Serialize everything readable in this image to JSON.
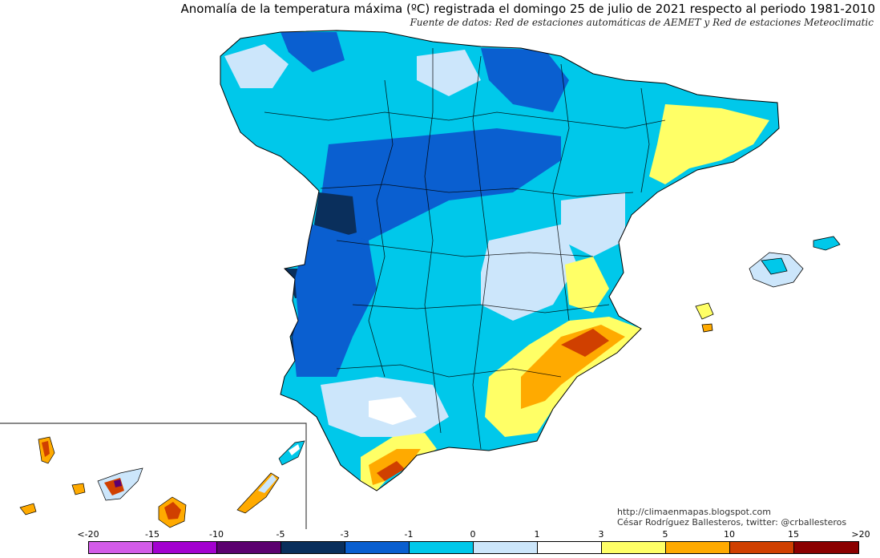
{
  "header": {
    "title": "Anomalía de la temperatura máxima (ºC) registrada el domingo 25 de julio de 2021 respecto al periodo 1981-2010",
    "subtitle": "Fuente de datos: Red de estaciones automáticas de AEMET y Red de estaciones Meteoclimatic"
  },
  "credits": {
    "url": "http://climaenmapas.blogspot.com",
    "author": "César Rodríguez Ballesteros, twitter: @crballesteros"
  },
  "legend": {
    "ticks": [
      "<-20",
      "-15",
      "-10",
      "-5",
      "-3",
      "-1",
      "0",
      "1",
      "3",
      "5",
      "10",
      "15",
      ">20"
    ],
    "colors": [
      "#d35be8",
      "#a300d0",
      "#5c0070",
      "#0a2f5c",
      "#0a5fd0",
      "#00c8ea",
      "#cce6fb",
      "#ffffff",
      "#ffff66",
      "#ffaa00",
      "#d04000",
      "#8b0000",
      "#5c3000"
    ]
  },
  "colors": {
    "deep_blue": "#0a2f5c",
    "blue": "#0a5fd0",
    "cyan": "#00c8ea",
    "light_blue": "#cce6fb",
    "yellow": "#ffff66",
    "orange": "#ffaa00",
    "red": "#d04000"
  },
  "icons": [
    "peninsula-map",
    "balearic-islands",
    "canary-islands-inset"
  ]
}
